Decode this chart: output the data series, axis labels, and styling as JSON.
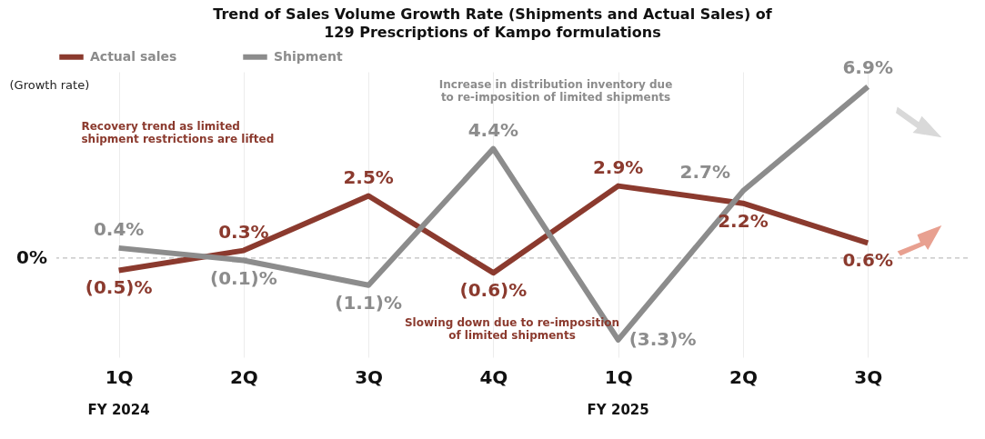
{
  "chart_data": {
    "type": "line",
    "title": "Trend of Sales Volume Growth Rate (Shipments and Actual Sales) of 129 Prescriptions of Kampo formulations",
    "ylabel": "(Growth rate)",
    "categories": [
      "1Q",
      "2Q",
      "3Q",
      "4Q",
      "1Q",
      "2Q",
      "3Q"
    ],
    "series": [
      {
        "name": "Actual sales",
        "color": "#8b3a2e",
        "values": [
          -0.5,
          0.3,
          2.5,
          -0.6,
          2.9,
          2.2,
          0.6
        ],
        "value_labels": [
          "(0.5)%",
          "0.3%",
          "2.5%",
          "(0.6)%",
          "2.9%",
          "2.2%",
          "0.6%"
        ]
      },
      {
        "name": "Shipment",
        "color": "#8c8c8c",
        "values": [
          0.4,
          -0.1,
          -1.1,
          4.4,
          -3.3,
          2.7,
          6.9
        ],
        "value_labels": [
          "0.4%",
          "(0.1)%",
          "(1.1)%",
          "4.4%",
          "(3.3)%",
          "2.7%",
          "6.9%"
        ]
      }
    ],
    "ylim": [
      -4,
      7.5
    ],
    "tick_labels": "x",
    "grid": "x",
    "legend": "top",
    "marker": "none",
    "line_style": "solid",
    "ref_lines": [
      {
        "axis": "y",
        "value": 0,
        "label": "0%",
        "color": "#bfbfbf",
        "line_style": "dashed"
      }
    ],
    "annotations": [
      "Recovery trend as limited shipment restrictions are lifted",
      "Increase in distribution inventory due to re-imposition of limited shipments",
      "Slowing down due to re-imposition of limited shipments",
      "FY 2024",
      "FY 2025"
    ]
  }
}
